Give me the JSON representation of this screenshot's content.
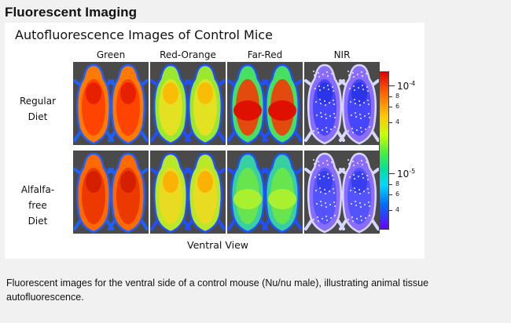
{
  "section_title": "Fluorescent Imaging",
  "figure": {
    "title": "Autofluorescence Images of Control Mice",
    "columns": [
      "Green",
      "Red-Orange",
      "Far-Red",
      "NIR"
    ],
    "rows": [
      {
        "line1": "Regular",
        "line2": "Diet"
      },
      {
        "line1": "Alfalfa-free",
        "line2": "Diet"
      }
    ],
    "footer": "Ventral View",
    "colorbar": {
      "major_top": {
        "base": "10",
        "exp": "-4"
      },
      "major_bottom": {
        "base": "10",
        "exp": "-5"
      },
      "minor_top": [
        "8",
        "6",
        "4"
      ],
      "minor_bottom": [
        "8",
        "6",
        "4"
      ]
    }
  },
  "caption": "Fluorescent images for the ventral side of a control mouse (Nu/nu male), illustrating animal tissue autofluorescence."
}
